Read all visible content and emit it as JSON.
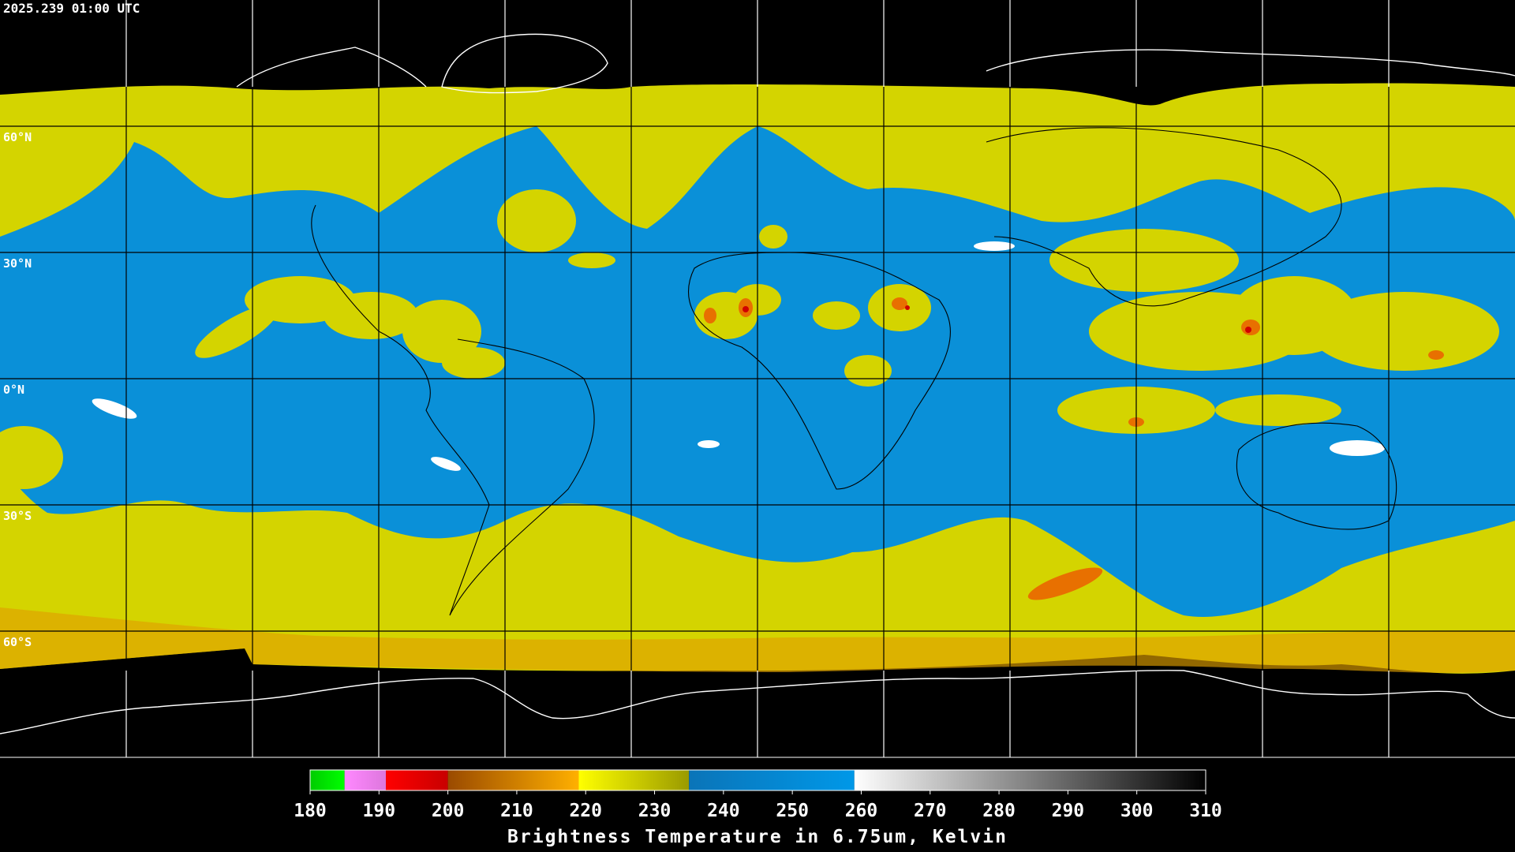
{
  "timestamp": "2025.239 01:00 UTC",
  "lat_labels": [
    "60°N",
    "30°N",
    "0°N",
    "30°S",
    "60°S"
  ],
  "colorbar": {
    "title": "Brightness Temperature in 6.75um, Kelvin",
    "lim": [
      180,
      310
    ],
    "ticks": [
      180,
      190,
      200,
      210,
      220,
      230,
      240,
      250,
      260,
      270,
      280,
      290,
      300,
      310
    ],
    "segments": [
      {
        "from": 180,
        "to": 185,
        "colors": [
          "#00cc00",
          "#00ff00"
        ]
      },
      {
        "from": 185,
        "to": 191,
        "colors": [
          "#ff88ff",
          "#dd77dd"
        ]
      },
      {
        "from": 191,
        "to": 200,
        "colors": [
          "#ff0000",
          "#c80000"
        ]
      },
      {
        "from": 200,
        "to": 219,
        "colors": [
          "#9a4a00",
          "#ffb000"
        ]
      },
      {
        "from": 219,
        "to": 235,
        "colors": [
          "#ffff00",
          "#9a9a00"
        ]
      },
      {
        "from": 235,
        "to": 259,
        "colors": [
          "#0a74b8",
          "#0098e8"
        ]
      },
      {
        "from": 259,
        "to": 310,
        "colors": [
          "#ffffff",
          "#000000"
        ]
      }
    ]
  }
}
